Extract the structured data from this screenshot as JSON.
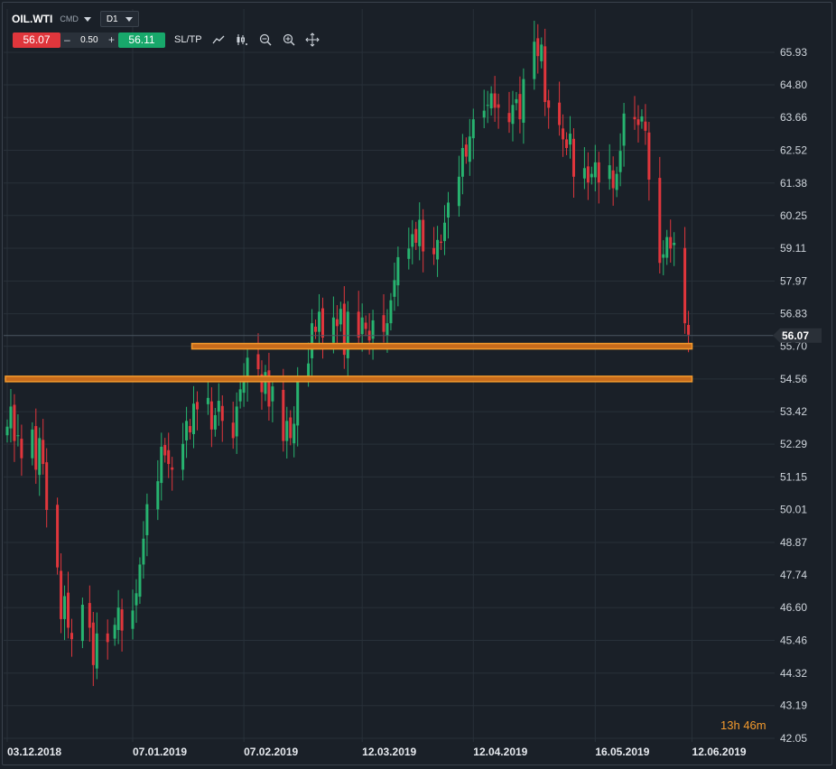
{
  "header": {
    "symbol": "OIL.WTI",
    "class": "CMD",
    "timeframe": "D1",
    "sell_price": "56.07",
    "lot_minus": "–",
    "lot_value": "0.50",
    "lot_plus": "+",
    "buy_price": "56.11",
    "sltp_label": "SL/TP",
    "tools": [
      "line-chart-icon",
      "candles-icon",
      "zoom-out-icon",
      "zoom-in-icon",
      "crosshair-icon"
    ]
  },
  "timer": {
    "hours": "13",
    "h_unit": "h",
    "minutes": "46",
    "m_unit": "m"
  },
  "colors": {
    "background": "#1a2028",
    "up": "#27b36f",
    "down": "#e0363c",
    "zone": "#f39a2d",
    "grid": "#283039"
  },
  "chart_data": {
    "type": "candlestick",
    "symbol": "OIL.WTI",
    "timeframe": "D1",
    "y_ticks": [
      "65.93",
      "64.80",
      "63.66",
      "62.52",
      "61.38",
      "60.25",
      "59.11",
      "57.97",
      "56.83",
      "55.70",
      "54.56",
      "53.42",
      "52.29",
      "51.15",
      "50.01",
      "48.87",
      "47.74",
      "46.60",
      "45.46",
      "44.32",
      "43.19",
      "42.05"
    ],
    "ylim": [
      42.05,
      65.93
    ],
    "x_ticks": [
      "03.12.2018",
      "07.01.2019",
      "07.02.2019",
      "12.03.2019",
      "12.04.2019",
      "16.05.2019",
      "12.06.2019"
    ],
    "current_price": "56.07",
    "horizontal_zones": [
      {
        "from_date": "2019-01-24",
        "to_date": "2019-06-12",
        "price": 55.7
      },
      {
        "from_date": "2018-12-03",
        "to_date": "2019-06-12",
        "price": 54.56
      }
    ],
    "closes": [
      52.9,
      53.6,
      52.4,
      52.6,
      51.8,
      52.8,
      51.4,
      52.5,
      51.6,
      50.0,
      48.0,
      46.2,
      47.0,
      45.9,
      45.5,
      46.7,
      45.9,
      44.6,
      45.7,
      45.4,
      46.0,
      46.6,
      45.8,
      46.5,
      47.1,
      48.1,
      49.0,
      50.2,
      51.0,
      52.2,
      51.9,
      51.6,
      51.4,
      52.3,
      53.1,
      52.7,
      53.7,
      53.5,
      53.9,
      52.8,
      53.3,
      53.8,
      53.1,
      52.5,
      53.6,
      54.2,
      54.5,
      55.3,
      54.9,
      54.1,
      54.8,
      53.6,
      54.3,
      52.4,
      53.1,
      52.5,
      53.0,
      54.6,
      55.1,
      56.5,
      56.2,
      56.9,
      56.0,
      56.7,
      56.4,
      57.0,
      55.4,
      56.9,
      56.0,
      56.7,
      56.3,
      55.9,
      56.6,
      56.2,
      56.5,
      57.3,
      58.0,
      58.8,
      59.1,
      59.6,
      59.3,
      60.1,
      59.0,
      58.9,
      59.4,
      59.3,
      60.0,
      60.7,
      61.6,
      62.6,
      62.3,
      63.0,
      63.6,
      63.9,
      64.1,
      64.5,
      64.0,
      64.0,
      63.5,
      64.1,
      64.3,
      63.6,
      65.0,
      66.3,
      65.8,
      66.2,
      64.2,
      64.0,
      63.4,
      62.9,
      62.6,
      63.1,
      61.6,
      61.9,
      61.4,
      61.7,
      62.1,
      61.4,
      62.0,
      61.2,
      61.7,
      62.5,
      63.8,
      63.6,
      63.4,
      63.7,
      63.2,
      61.5,
      58.6,
      58.9,
      59.5,
      59.1,
      59.3,
      56.5,
      56.1
    ]
  }
}
